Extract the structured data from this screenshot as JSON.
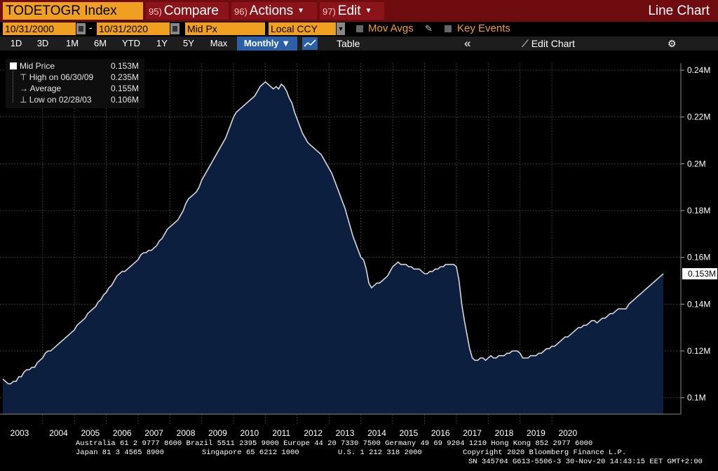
{
  "header": {
    "ticker": "TODETOGR Index",
    "menus": [
      {
        "num": "95)",
        "label": "Compare",
        "has_arrow": false
      },
      {
        "num": "96)",
        "label": "Actions",
        "has_arrow": true
      },
      {
        "num": "97)",
        "label": "Edit",
        "has_arrow": true
      }
    ],
    "chart_type_label": "Line Chart"
  },
  "controls": {
    "start_date": "10/31/2000",
    "end_date": "10/31/2020",
    "date_separator": "-",
    "field": "Mid Px",
    "currency": "Local CCY",
    "mov_avgs": "Mov Avgs",
    "key_events": "Key Events"
  },
  "toolbar": {
    "ranges": [
      "1D",
      "3D",
      "1M",
      "6M",
      "YTD",
      "1Y",
      "5Y",
      "Max"
    ],
    "frequency": "Monthly",
    "table": "Table",
    "collapse": "«",
    "edit_chart": "Edit Chart"
  },
  "legend": {
    "mid_label": "Mid Price",
    "mid_value": "0.153M",
    "high_label": "High on 06/30/09",
    "high_value": "0.235M",
    "avg_label": "Average",
    "avg_value": "0.155M",
    "low_label": "Low on 02/28/03",
    "low_value": "0.106M"
  },
  "footer": {
    "line1": "Australia 61 2 9777 8600 Brazil 5511 2395 9000 Europe 44 20 7330 7500 Germany 49 69 9204 1210 Hong Kong 852 2977 6000",
    "line2a": "Japan 81 3 4565 8900",
    "line2b": "Singapore 65 6212 1000",
    "line2c": "U.S. 1 212 318 2000",
    "line2d": "Copyright 2020 Bloomberg Finance L.P.",
    "line3": "SN 345704 G613-5506-3 30-Nov-20 14:43:15 EET  GMT+2:00"
  },
  "colors": {
    "accent": "#f0a020",
    "header_bg": "#6e0c10",
    "area_fill": "#0c1f3f",
    "line": "#d8d8d8"
  },
  "chart_data": {
    "type": "area",
    "x_start": "2002-10-31",
    "frequency": "monthly",
    "x_ticks": [
      "2003",
      "2004",
      "2005",
      "2006",
      "2007",
      "2008",
      "2009",
      "2010",
      "2011",
      "2012",
      "2013",
      "2014",
      "2015",
      "2016",
      "2017",
      "2018",
      "2019",
      "2020"
    ],
    "y_ticks": [
      "0.1M",
      "0.12M",
      "0.14M",
      "0.16M",
      "0.18M",
      "0.2M",
      "0.22M",
      "0.24M"
    ],
    "ylim": [
      0.093,
      0.243
    ],
    "last_value_label": "0.153M",
    "values": [
      0.108,
      0.107,
      0.106,
      0.106,
      0.107,
      0.107,
      0.109,
      0.109,
      0.111,
      0.112,
      0.112,
      0.113,
      0.113,
      0.115,
      0.116,
      0.117,
      0.119,
      0.12,
      0.12,
      0.121,
      0.122,
      0.123,
      0.124,
      0.125,
      0.126,
      0.127,
      0.128,
      0.129,
      0.131,
      0.132,
      0.133,
      0.134,
      0.136,
      0.137,
      0.138,
      0.139,
      0.141,
      0.142,
      0.144,
      0.145,
      0.147,
      0.148,
      0.15,
      0.152,
      0.153,
      0.154,
      0.154,
      0.155,
      0.156,
      0.157,
      0.158,
      0.159,
      0.161,
      0.162,
      0.162,
      0.163,
      0.163,
      0.164,
      0.165,
      0.167,
      0.168,
      0.17,
      0.172,
      0.173,
      0.174,
      0.175,
      0.176,
      0.178,
      0.18,
      0.183,
      0.185,
      0.186,
      0.187,
      0.188,
      0.19,
      0.193,
      0.195,
      0.197,
      0.199,
      0.201,
      0.203,
      0.205,
      0.207,
      0.209,
      0.211,
      0.214,
      0.217,
      0.22,
      0.222,
      0.223,
      0.224,
      0.225,
      0.226,
      0.227,
      0.228,
      0.229,
      0.231,
      0.233,
      0.234,
      0.235,
      0.234,
      0.233,
      0.232,
      0.233,
      0.232,
      0.234,
      0.233,
      0.231,
      0.228,
      0.226,
      0.222,
      0.219,
      0.216,
      0.213,
      0.211,
      0.209,
      0.208,
      0.207,
      0.206,
      0.205,
      0.204,
      0.202,
      0.2,
      0.198,
      0.196,
      0.193,
      0.19,
      0.187,
      0.184,
      0.181,
      0.177,
      0.173,
      0.169,
      0.166,
      0.163,
      0.16,
      0.159,
      0.155,
      0.149,
      0.147,
      0.148,
      0.149,
      0.149,
      0.15,
      0.151,
      0.152,
      0.154,
      0.156,
      0.157,
      0.158,
      0.157,
      0.157,
      0.157,
      0.156,
      0.156,
      0.155,
      0.155,
      0.155,
      0.154,
      0.153,
      0.153,
      0.154,
      0.154,
      0.155,
      0.155,
      0.156,
      0.156,
      0.157,
      0.157,
      0.157,
      0.157,
      0.156,
      0.15,
      0.14,
      0.133,
      0.127,
      0.121,
      0.117,
      0.116,
      0.116,
      0.117,
      0.117,
      0.116,
      0.117,
      0.118,
      0.117,
      0.117,
      0.118,
      0.118,
      0.118,
      0.119,
      0.119,
      0.12,
      0.12,
      0.12,
      0.119,
      0.117,
      0.117,
      0.117,
      0.118,
      0.118,
      0.118,
      0.119,
      0.119,
      0.12,
      0.121,
      0.121,
      0.122,
      0.122,
      0.123,
      0.124,
      0.125,
      0.126,
      0.126,
      0.127,
      0.128,
      0.129,
      0.13,
      0.13,
      0.131,
      0.131,
      0.132,
      0.133,
      0.133,
      0.132,
      0.133,
      0.134,
      0.134,
      0.135,
      0.136,
      0.136,
      0.137,
      0.138,
      0.138,
      0.138,
      0.138,
      0.14,
      0.141,
      0.142,
      0.143,
      0.144,
      0.145,
      0.146,
      0.147,
      0.148,
      0.149,
      0.15,
      0.151,
      0.152,
      0.153
    ]
  }
}
